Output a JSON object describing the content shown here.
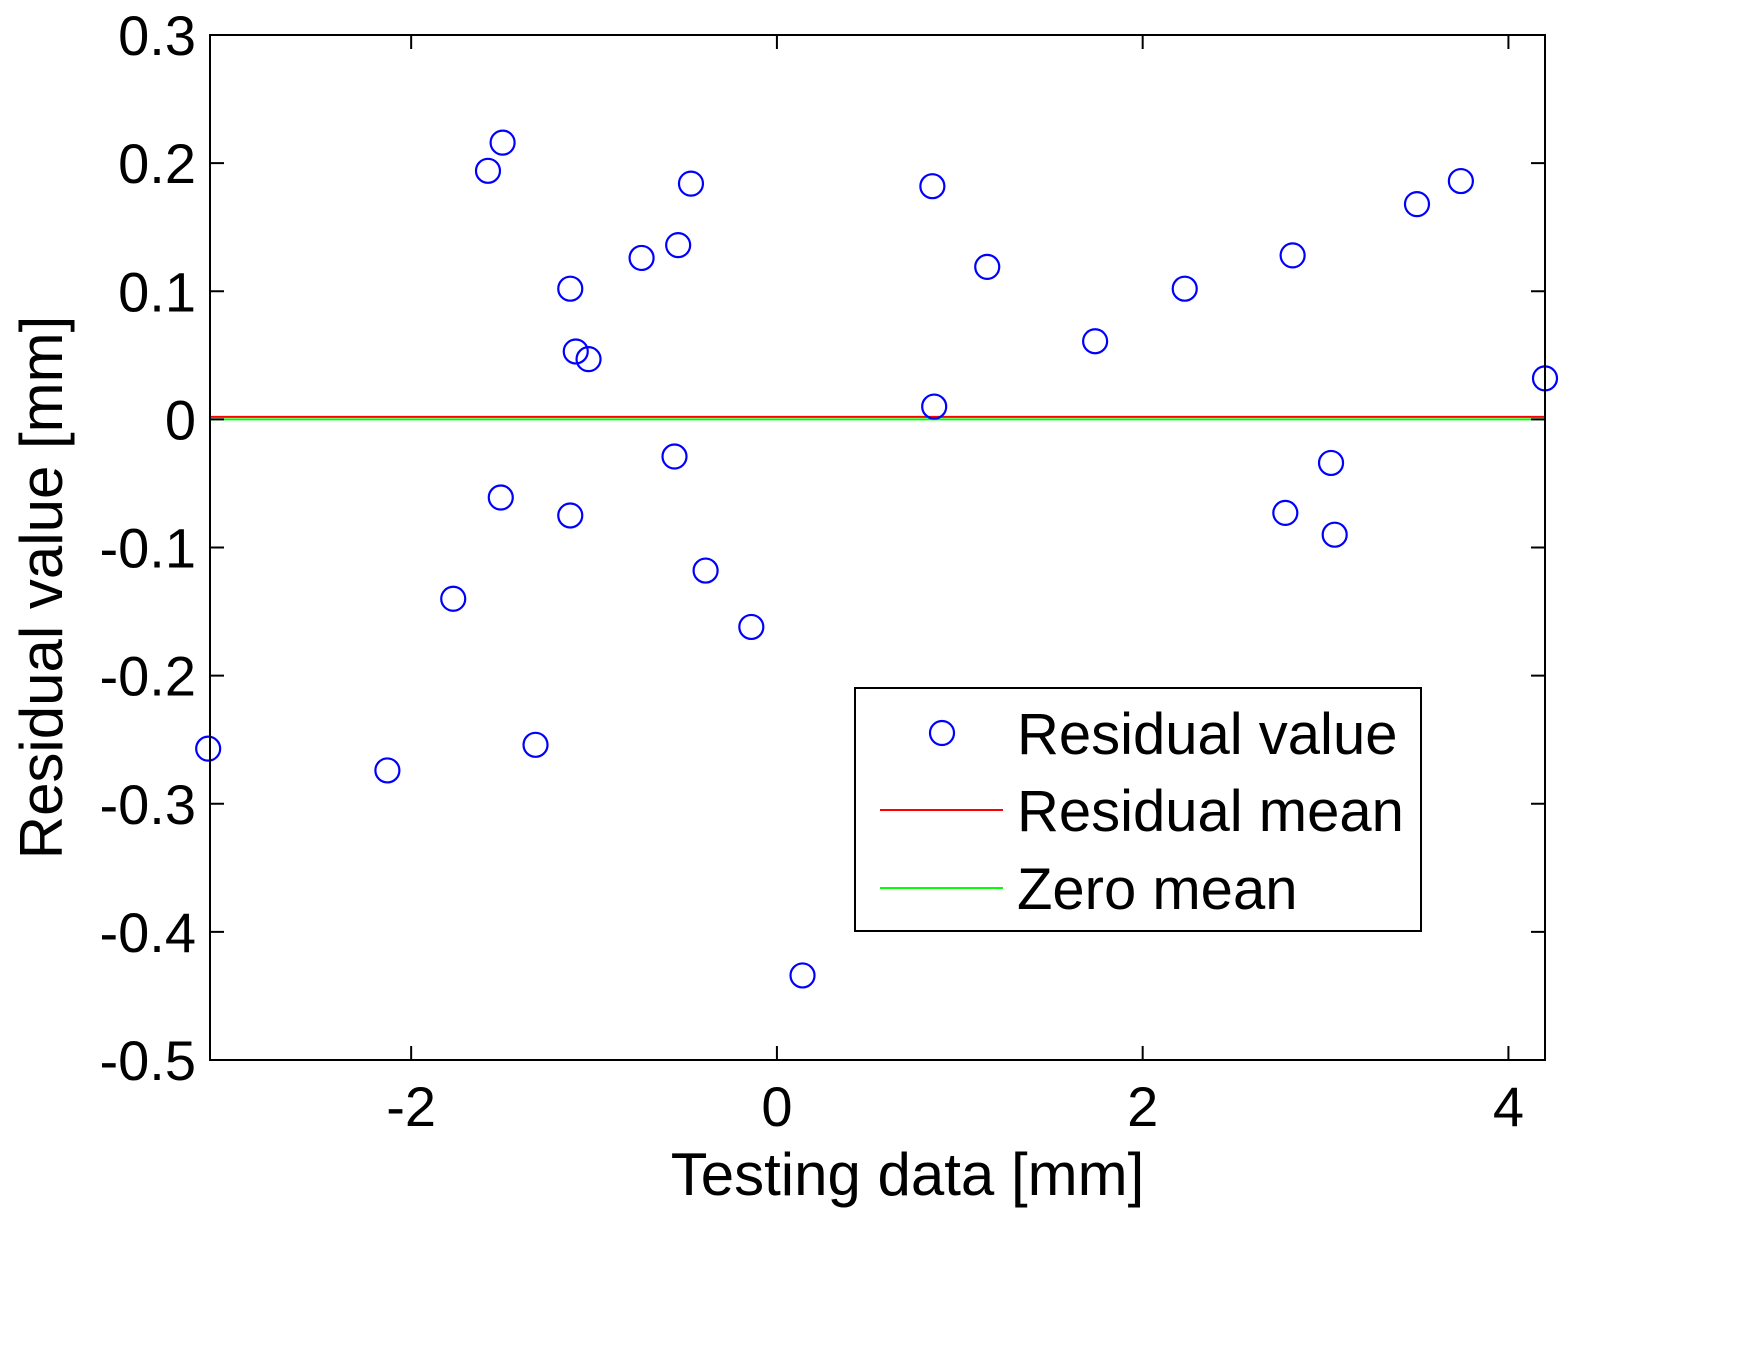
{
  "chart_data": {
    "type": "scatter",
    "title": "",
    "xlabel": "Testing data [mm]",
    "ylabel": "Residual value [mm]",
    "xlim": [
      -3.1,
      4.2
    ],
    "ylim": [
      -0.5,
      0.3
    ],
    "xticks": [
      -2,
      0,
      2,
      4
    ],
    "xtick_labels": [
      "-2",
      "0",
      "2",
      "4"
    ],
    "yticks": [
      0.3,
      0.2,
      0.1,
      0,
      -0.1,
      -0.2,
      -0.3,
      -0.4,
      -0.5
    ],
    "ytick_labels": [
      "0.3",
      "0.2",
      "0.1",
      "0",
      "-0.1",
      "-0.2",
      "-0.3",
      "-0.4",
      "-0.5"
    ],
    "grid": false,
    "legend_position": "bottom-right",
    "colors": {
      "points": "#0000ff",
      "residual_mean": "#ff0000",
      "zero_mean": "#00ff00",
      "axes": "#000000"
    },
    "series": [
      {
        "name": "Residual value",
        "kind": "scatter",
        "marker": "circle-open",
        "points": [
          {
            "x": -3.11,
            "y": -0.257
          },
          {
            "x": -2.13,
            "y": -0.274
          },
          {
            "x": -1.77,
            "y": -0.14
          },
          {
            "x": -1.58,
            "y": 0.194
          },
          {
            "x": -1.5,
            "y": 0.216
          },
          {
            "x": -1.51,
            "y": -0.061
          },
          {
            "x": -1.32,
            "y": -0.254
          },
          {
            "x": -1.13,
            "y": 0.102
          },
          {
            "x": -1.1,
            "y": 0.053
          },
          {
            "x": -1.03,
            "y": 0.047
          },
          {
            "x": -1.13,
            "y": -0.075
          },
          {
            "x": -0.74,
            "y": 0.126
          },
          {
            "x": -0.56,
            "y": -0.029
          },
          {
            "x": -0.54,
            "y": 0.136
          },
          {
            "x": -0.47,
            "y": 0.184
          },
          {
            "x": -0.39,
            "y": -0.118
          },
          {
            "x": -0.14,
            "y": -0.162
          },
          {
            "x": 0.14,
            "y": -0.434
          },
          {
            "x": 0.85,
            "y": 0.182
          },
          {
            "x": 0.86,
            "y": 0.01
          },
          {
            "x": 1.15,
            "y": 0.119
          },
          {
            "x": 1.74,
            "y": 0.061
          },
          {
            "x": 2.23,
            "y": 0.102
          },
          {
            "x": 2.78,
            "y": -0.073
          },
          {
            "x": 2.82,
            "y": 0.128
          },
          {
            "x": 3.03,
            "y": -0.034
          },
          {
            "x": 3.05,
            "y": -0.09
          },
          {
            "x": 3.5,
            "y": 0.168
          },
          {
            "x": 3.74,
            "y": 0.186
          },
          {
            "x": 4.2,
            "y": 0.032
          }
        ]
      },
      {
        "name": "Residual mean",
        "kind": "hline",
        "y": 0.002
      },
      {
        "name": "Zero mean",
        "kind": "hline",
        "y": 0
      }
    ]
  }
}
